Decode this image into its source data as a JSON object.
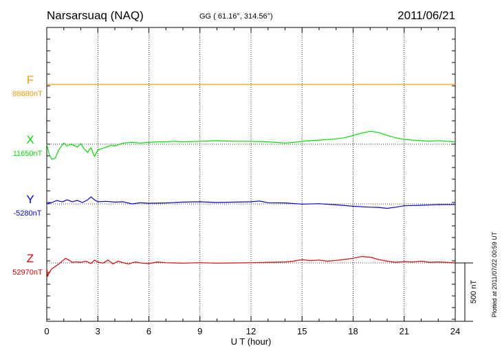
{
  "chart_data": {
    "type": "line",
    "title": "Narsarsuaq (NAQ)",
    "subtitle": "GG ( 61.16°, 314.56°)",
    "date": "2011/06/21",
    "xlabel": "U T (hour)",
    "xlim": [
      0,
      24
    ],
    "xticks": [
      "0",
      "3",
      "6",
      "9",
      "12",
      "15",
      "18",
      "21",
      "24"
    ],
    "scale_bar_label": "500 nT",
    "scale_bar_nT": 500,
    "side_note": "Plotted at 2011/07/22 00:59 UT",
    "series": [
      {
        "name": "F",
        "baseline_label": "88880nT",
        "baseline_nT": 88880,
        "color": "#f0a000",
        "x": [
          0,
          24
        ],
        "values_nT": [
          88880,
          88880
        ]
      },
      {
        "name": "X",
        "baseline_label": "11650nT",
        "baseline_nT": 11650,
        "color": "#00e000",
        "x": [
          0,
          0.15,
          0.3,
          0.5,
          0.7,
          0.9,
          1.0,
          1.2,
          1.4,
          1.6,
          1.8,
          2.0,
          2.2,
          2.4,
          2.6,
          2.8,
          3.0,
          3.2,
          3.5,
          3.8,
          4.0,
          4.5,
          5.0,
          5.5,
          6.0,
          6.5,
          7.0,
          7.5,
          8.0,
          9.0,
          10.0,
          11.0,
          12.0,
          13.0,
          14.0,
          14.5,
          15.0,
          15.5,
          16.0,
          17.0,
          17.5,
          18.0,
          18.5,
          19.0,
          19.3,
          19.6,
          20.0,
          20.5,
          21.0,
          21.5,
          22.0,
          22.5,
          23.0,
          23.5,
          24.0
        ],
        "values_nT": [
          11650,
          11560,
          11520,
          11530,
          11600,
          11640,
          11660,
          11635,
          11650,
          11640,
          11625,
          11655,
          11610,
          11580,
          11620,
          11545,
          11600,
          11610,
          11625,
          11640,
          11635,
          11660,
          11665,
          11660,
          11665,
          11670,
          11670,
          11675,
          11670,
          11675,
          11680,
          11675,
          11675,
          11670,
          11660,
          11665,
          11675,
          11680,
          11685,
          11695,
          11705,
          11725,
          11745,
          11760,
          11755,
          11745,
          11725,
          11705,
          11690,
          11685,
          11680,
          11675,
          11680,
          11675,
          11670
        ]
      },
      {
        "name": "Y",
        "baseline_label": "-5280nT",
        "baseline_nT": -5280,
        "color": "#0000e0",
        "x": [
          0,
          0.3,
          0.6,
          0.9,
          1.2,
          1.5,
          1.8,
          2.1,
          2.4,
          2.6,
          2.8,
          3.0,
          3.5,
          4.0,
          4.5,
          5.0,
          5.5,
          6.0,
          7.0,
          8.0,
          9.0,
          10.0,
          11.0,
          12.0,
          12.5,
          13.0,
          14.0,
          15.0,
          16.0,
          17.0,
          18.0,
          19.0,
          19.5,
          20.0,
          20.5,
          21.0,
          22.0,
          23.0,
          24.0
        ],
        "values_nT": [
          -5282,
          -5268,
          -5250,
          -5263,
          -5245,
          -5262,
          -5250,
          -5268,
          -5245,
          -5220,
          -5245,
          -5262,
          -5258,
          -5265,
          -5262,
          -5280,
          -5270,
          -5275,
          -5272,
          -5265,
          -5262,
          -5268,
          -5265,
          -5262,
          -5255,
          -5270,
          -5272,
          -5282,
          -5278,
          -5288,
          -5300,
          -5308,
          -5310,
          -5318,
          -5308,
          -5296,
          -5292,
          -5286,
          -5285
        ]
      },
      {
        "name": "Z",
        "baseline_label": "52970nT",
        "baseline_nT": 52970,
        "color": "#e00000",
        "x": [
          0,
          0.05,
          0.15,
          0.3,
          0.5,
          0.7,
          0.9,
          1.1,
          1.3,
          1.5,
          1.7,
          2.0,
          2.3,
          2.6,
          2.8,
          3.0,
          3.3,
          3.6,
          3.9,
          4.2,
          4.5,
          4.8,
          5.2,
          5.6,
          6.0,
          6.5,
          7.0,
          8.0,
          9.0,
          10.0,
          11.0,
          12.0,
          13.0,
          14.0,
          14.5,
          15.0,
          15.5,
          16.0,
          16.5,
          17.0,
          17.5,
          18.0,
          18.5,
          19.0,
          19.5,
          20.0,
          20.5,
          21.0,
          21.5,
          22.0,
          22.5,
          23.0,
          23.5,
          24.0
        ],
        "values_nT": [
          52930,
          52855,
          52890,
          52920,
          52940,
          52960,
          52985,
          53010,
          52995,
          52975,
          52980,
          52975,
          52985,
          52965,
          52995,
          52978,
          52968,
          52995,
          52962,
          52985,
          52972,
          52962,
          52978,
          52968,
          52965,
          52978,
          52972,
          52968,
          52972,
          52968,
          52970,
          52972,
          52975,
          52978,
          52985,
          52998,
          52990,
          52995,
          52985,
          52992,
          53000,
          53010,
          53025,
          53020,
          52998,
          52985,
          52975,
          52982,
          52978,
          52985,
          52975,
          52978,
          52975,
          52970
        ]
      }
    ]
  }
}
